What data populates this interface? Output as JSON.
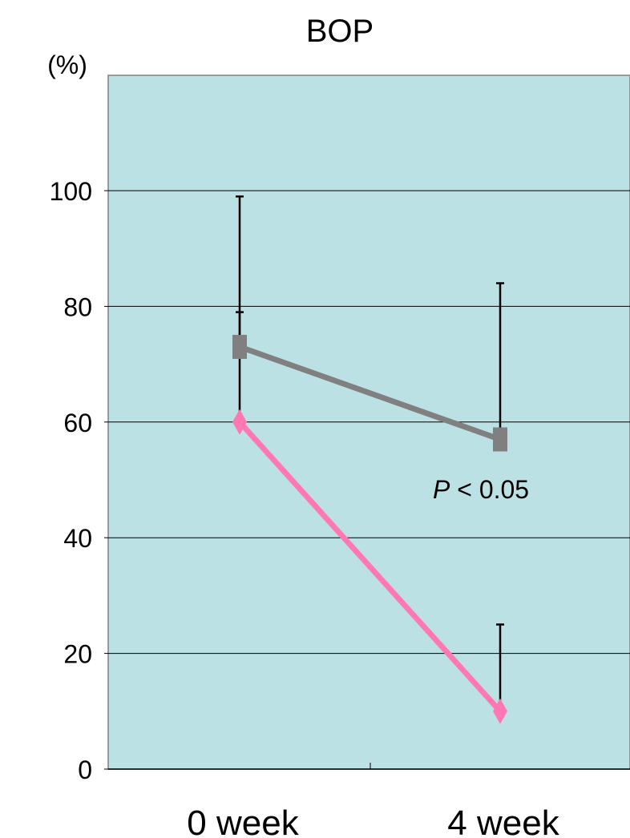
{
  "chart_data": {
    "type": "line",
    "title": "BOP",
    "ylabel": "(%)",
    "xlabel": "",
    "categories": [
      "0 week",
      "4 week"
    ],
    "ylim": [
      0,
      100
    ],
    "yticks": [
      "0",
      "20",
      "40",
      "60",
      "80",
      "100"
    ],
    "grid": true,
    "series": [
      {
        "color": "#808080",
        "marker": "square",
        "values": [
          73,
          57
        ],
        "error_upper": [
          99,
          84
        ]
      },
      {
        "color": "#ff78b4",
        "marker": "diamond",
        "values": [
          60,
          10
        ],
        "error_upper": [
          79,
          25
        ]
      }
    ],
    "annotations": [
      {
        "italic": "P",
        "text": " < 0.05"
      }
    ],
    "plot_background": "#bce1e4"
  }
}
